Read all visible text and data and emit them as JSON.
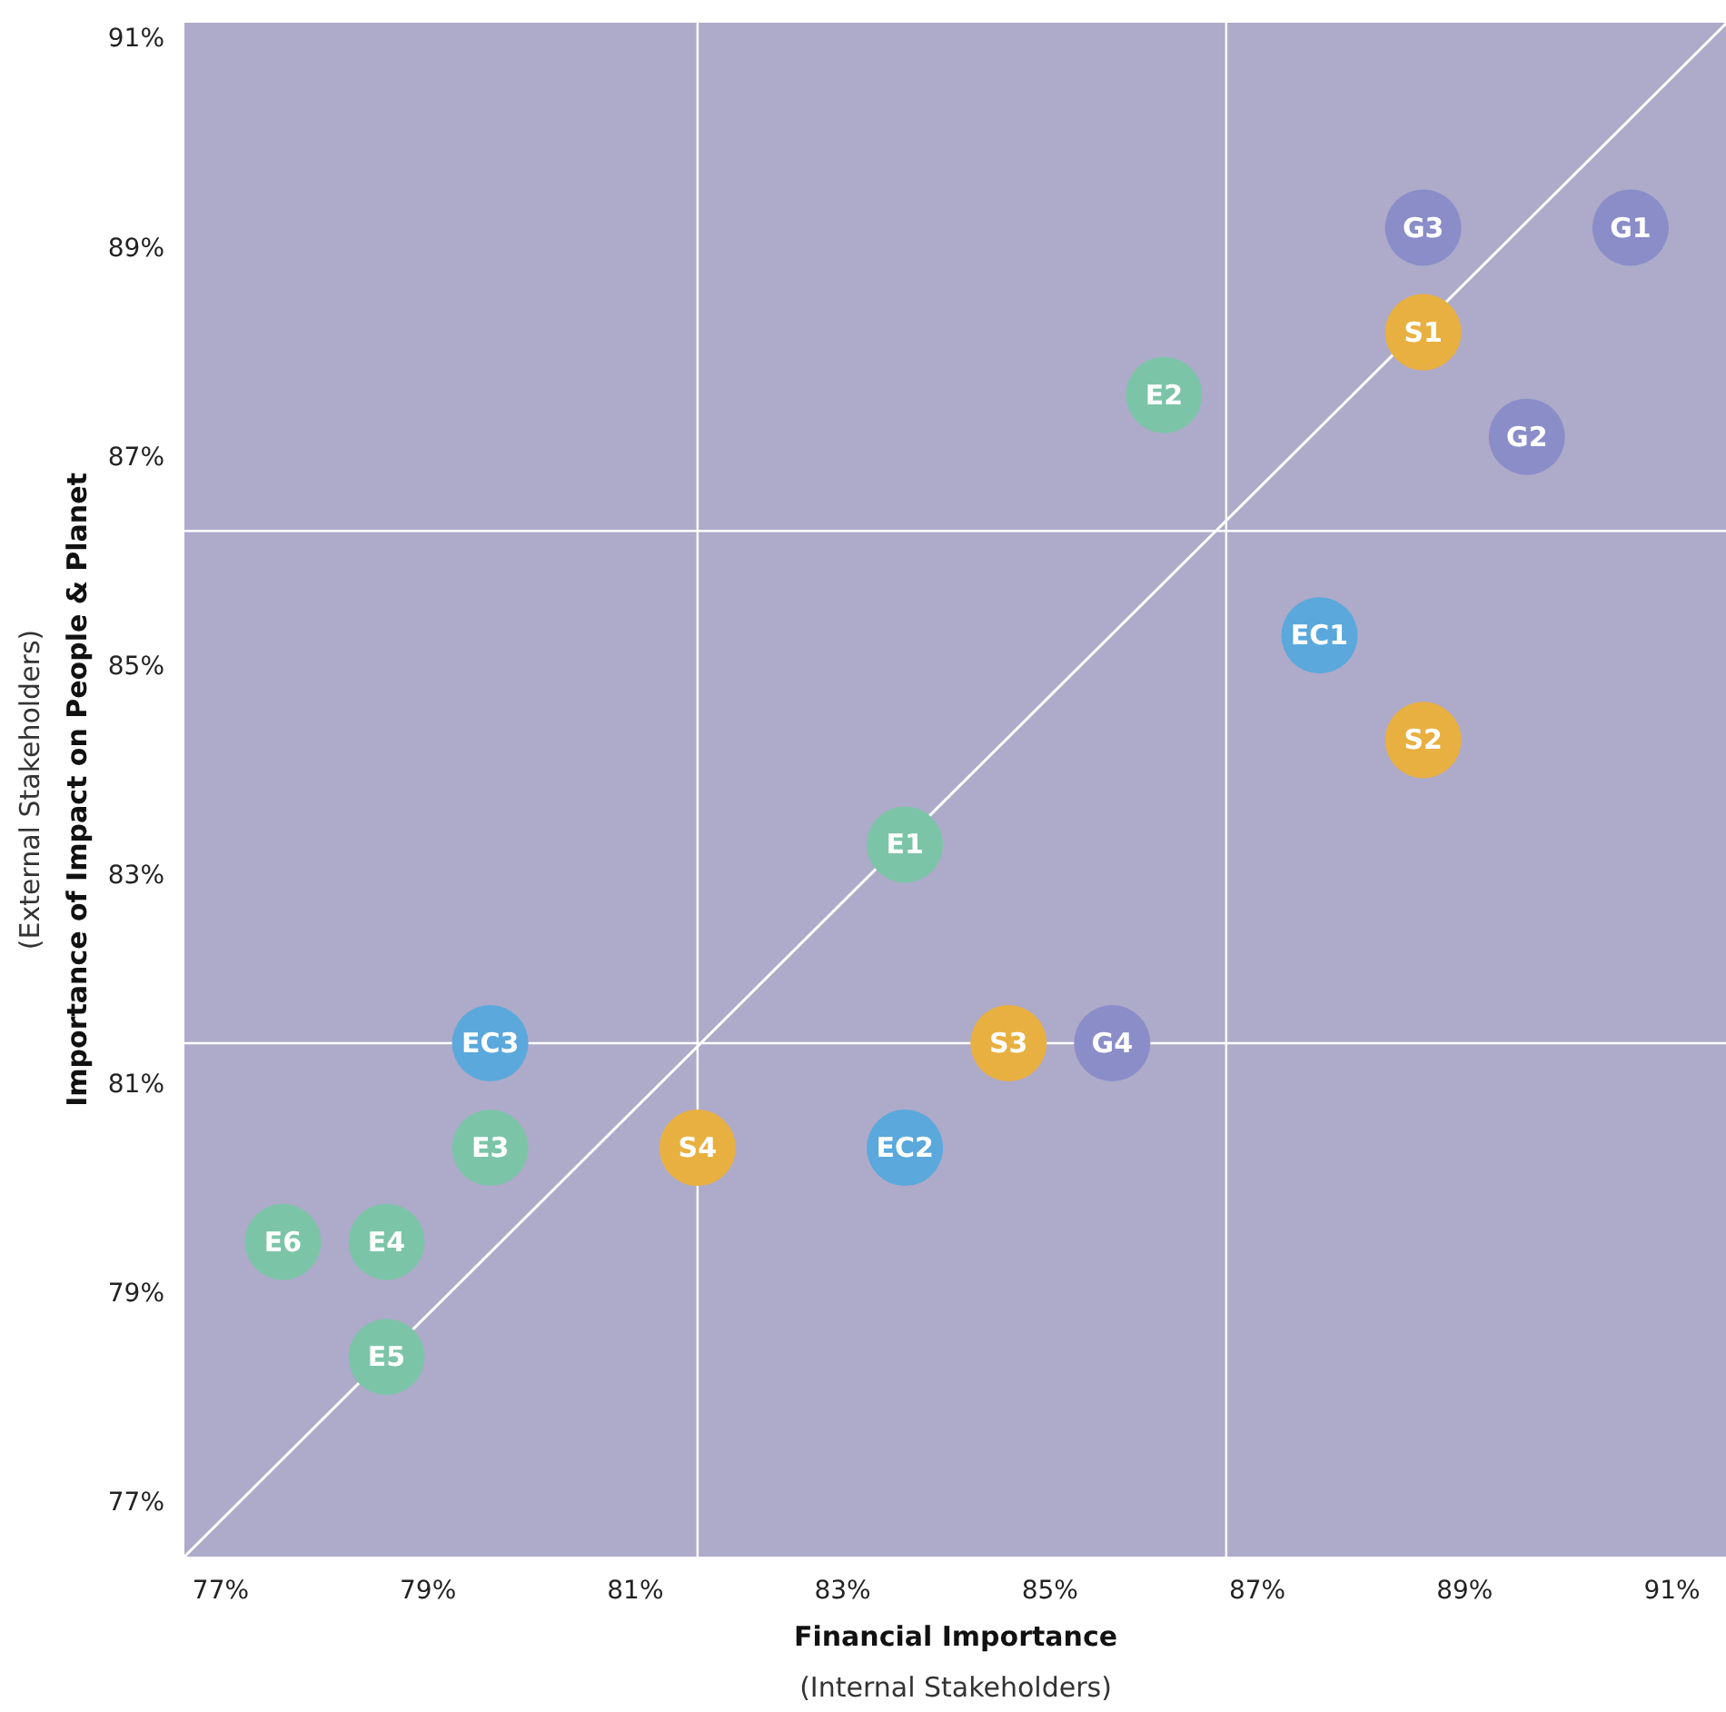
{
  "chart_data": {
    "type": "scatter",
    "xlabel": "Financial Importance\n(Internal Stakeholders)",
    "ylabel": "Importance of Impact on People & Planet\n(External Stakeholders)",
    "xlim": [
      76.65,
      91.53
    ],
    "ylim": [
      76.49,
      91.16
    ],
    "xticks": [
      {
        "value": 77,
        "label": "77%"
      },
      {
        "value": 79,
        "label": "79%"
      },
      {
        "value": 81,
        "label": "81%"
      },
      {
        "value": 83,
        "label": "83%"
      },
      {
        "value": 85,
        "label": "85%"
      },
      {
        "value": 87,
        "label": "87%"
      },
      {
        "value": 89,
        "label": "89%"
      },
      {
        "value": 91,
        "label": "91%"
      }
    ],
    "yticks": [
      {
        "value": 77,
        "label": "77%"
      },
      {
        "value": 79,
        "label": "79%"
      },
      {
        "value": 81,
        "label": "81%"
      },
      {
        "value": 83,
        "label": "83%"
      },
      {
        "value": 85,
        "label": "85%"
      },
      {
        "value": 87,
        "label": "87%"
      },
      {
        "value": 89,
        "label": "89%"
      },
      {
        "value": 91,
        "label": "91%"
      }
    ],
    "grid": false,
    "marker": "circle",
    "series": [
      {
        "type": "line",
        "marker": "none",
        "color": "#ffffff",
        "x": [
          76.65,
          91.53
        ],
        "values": [
          76.49,
          91.16
        ]
      },
      {
        "color": "#7cc4a8",
        "x": [
          83.6,
          86.1,
          79.6,
          78.6,
          78.6,
          77.6
        ],
        "values": [
          83.3,
          87.6,
          80.4,
          79.5,
          78.4,
          79.5
        ]
      },
      {
        "color": "#5aa8dc",
        "x": [
          87.6,
          83.6,
          79.6
        ],
        "values": [
          85.3,
          80.4,
          81.4
        ]
      },
      {
        "color": "#e8b040",
        "x": [
          88.6,
          88.6,
          84.6,
          81.6
        ],
        "values": [
          88.2,
          84.3,
          81.4,
          80.4
        ]
      },
      {
        "color": "#8a8dc8",
        "x": [
          90.6,
          89.6,
          88.6,
          85.6
        ],
        "values": [
          89.2,
          87.2,
          89.2,
          81.4
        ]
      }
    ],
    "annotations": [
      {
        "text": "E1",
        "x": 83.6,
        "y": 83.3
      },
      {
        "text": "E2",
        "x": 86.1,
        "y": 87.6
      },
      {
        "text": "E3",
        "x": 79.6,
        "y": 80.4
      },
      {
        "text": "E4",
        "x": 78.6,
        "y": 79.5
      },
      {
        "text": "E5",
        "x": 78.6,
        "y": 78.4
      },
      {
        "text": "E6",
        "x": 77.6,
        "y": 79.5
      },
      {
        "text": "EC1",
        "x": 87.6,
        "y": 85.3
      },
      {
        "text": "EC2",
        "x": 83.6,
        "y": 80.4
      },
      {
        "text": "EC3",
        "x": 79.6,
        "y": 81.4
      },
      {
        "text": "S1",
        "x": 88.6,
        "y": 88.2
      },
      {
        "text": "S2",
        "x": 88.6,
        "y": 84.3
      },
      {
        "text": "S3",
        "x": 84.6,
        "y": 81.4
      },
      {
        "text": "S4",
        "x": 81.6,
        "y": 80.4
      },
      {
        "text": "G1",
        "x": 90.6,
        "y": 89.2
      },
      {
        "text": "G2",
        "x": 89.6,
        "y": 87.2
      },
      {
        "text": "G3",
        "x": 88.6,
        "y": 89.2
      },
      {
        "text": "G4",
        "x": 85.6,
        "y": 81.4
      }
    ],
    "ref_lines": [
      {
        "axis": "x",
        "value": 81.6,
        "color": "#ffffff"
      },
      {
        "axis": "x",
        "value": 86.7,
        "color": "#ffffff"
      },
      {
        "axis": "y",
        "value": 86.3,
        "color": "#ffffff"
      },
      {
        "axis": "y",
        "value": 81.4,
        "color": "#ffffff"
      }
    ]
  }
}
